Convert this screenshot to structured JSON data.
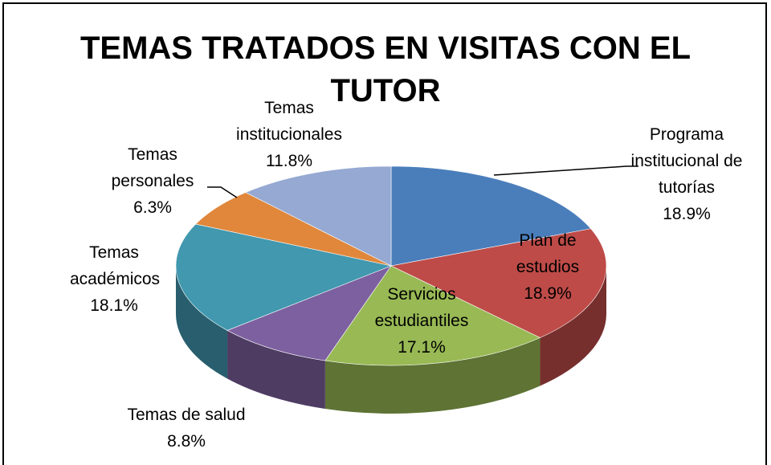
{
  "chart_data": {
    "type": "pie",
    "title": "TEMAS TRATADOS EN VISITAS CON EL TUTOR",
    "categories": [
      "Programa institucional de tutorías",
      "Plan de estudios",
      "Servicios estudiantiles",
      "Temas de salud",
      "Temas académicos",
      "Temas personales",
      "Temas institucionales"
    ],
    "values": [
      18.9,
      18.9,
      17.1,
      8.8,
      18.1,
      6.3,
      11.8
    ],
    "value_labels": [
      "18.9%",
      "18.9%",
      "17.1%",
      "8.8%",
      "18.1%",
      "6.3%",
      "11.8%"
    ],
    "colors": [
      "#4a7ebb",
      "#be4b48",
      "#98b954",
      "#7d60a0",
      "#4198af",
      "#e0873c",
      "#95a9d3"
    ]
  }
}
